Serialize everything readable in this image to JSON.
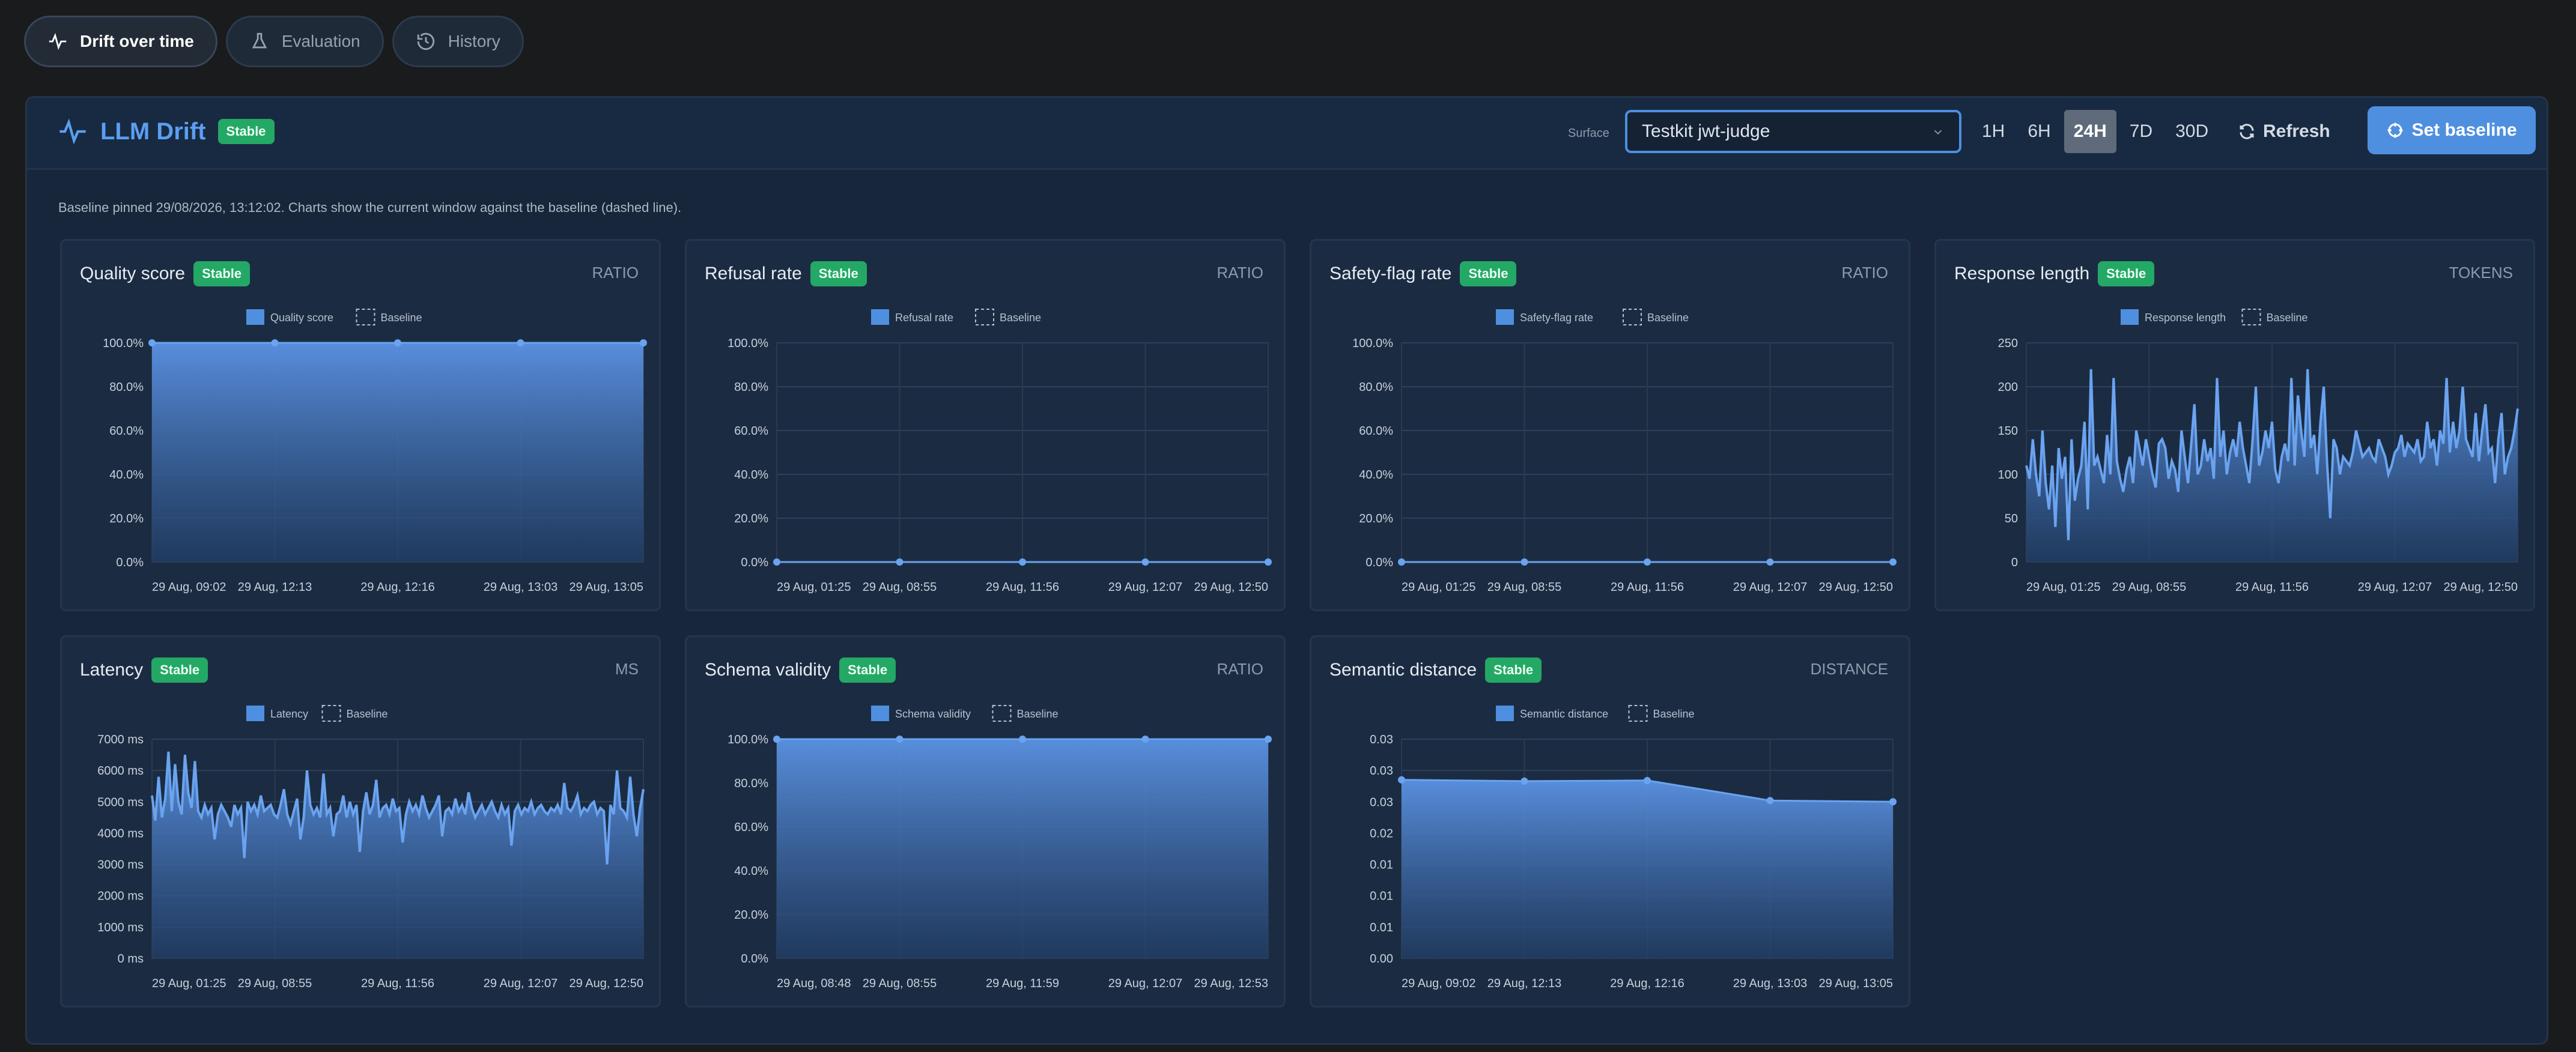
{
  "tabs": [
    {
      "label": "Drift over time",
      "icon": "pulse-icon",
      "active": true
    },
    {
      "label": "Evaluation",
      "icon": "flask-icon",
      "active": false
    },
    {
      "label": "History",
      "icon": "history-icon",
      "active": false
    }
  ],
  "header": {
    "title": "LLM Drift",
    "status": "Stable",
    "surface_label": "Surface",
    "surface_value": "Testkit jwt-judge",
    "ranges": [
      "1H",
      "6H",
      "24H",
      "7D",
      "30D"
    ],
    "active_range": "24H",
    "refresh_label": "Refresh",
    "set_baseline_label": "Set baseline"
  },
  "note": "Baseline pinned 29/08/2026, 13:12:02. Charts show the current window against the baseline (dashed line).",
  "colors": {
    "accent": "#4f8fe0",
    "stable": "#24a866",
    "background": "#1a1b1d",
    "card": "#1b2c42"
  },
  "cards": [
    {
      "title": "Quality score",
      "status": "Stable",
      "unit": "RATIO"
    },
    {
      "title": "Refusal rate",
      "status": "Stable",
      "unit": "RATIO"
    },
    {
      "title": "Safety-flag rate",
      "status": "Stable",
      "unit": "RATIO"
    },
    {
      "title": "Response length",
      "status": "Stable",
      "unit": "TOKENS"
    },
    {
      "title": "Latency",
      "status": "Stable",
      "unit": "MS"
    },
    {
      "title": "Schema validity",
      "status": "Stable",
      "unit": "RATIO"
    },
    {
      "title": "Semantic distance",
      "status": "Stable",
      "unit": "DISTANCE"
    }
  ],
  "chart_data": [
    {
      "type": "area",
      "legend": [
        "Quality score",
        "Baseline"
      ],
      "yticks": [
        "0.0%",
        "20.0%",
        "40.0%",
        "60.0%",
        "80.0%",
        "100.0%"
      ],
      "ylim": [
        0,
        1
      ],
      "xticks": [
        "29 Aug, 09:02",
        "29 Aug, 12:13",
        "29 Aug, 12:16",
        "29 Aug, 13:03",
        "29 Aug, 13:05"
      ],
      "values": [
        1,
        1,
        1,
        1,
        1
      ]
    },
    {
      "type": "area",
      "legend": [
        "Refusal rate",
        "Baseline"
      ],
      "yticks": [
        "0.0%",
        "20.0%",
        "40.0%",
        "60.0%",
        "80.0%",
        "100.0%"
      ],
      "ylim": [
        0,
        1
      ],
      "xticks": [
        "29 Aug, 01:25",
        "29 Aug, 08:55",
        "29 Aug, 11:56",
        "29 Aug, 12:07",
        "29 Aug, 12:50"
      ],
      "values": [
        0,
        0,
        0,
        0,
        0
      ]
    },
    {
      "type": "area",
      "legend": [
        "Safety-flag rate",
        "Baseline"
      ],
      "yticks": [
        "0.0%",
        "20.0%",
        "40.0%",
        "60.0%",
        "80.0%",
        "100.0%"
      ],
      "ylim": [
        0,
        1
      ],
      "xticks": [
        "29 Aug, 01:25",
        "29 Aug, 08:55",
        "29 Aug, 11:56",
        "29 Aug, 12:07",
        "29 Aug, 12:50"
      ],
      "values": [
        0,
        0,
        0,
        0,
        0
      ]
    },
    {
      "type": "area",
      "legend": [
        "Response length",
        "Baseline"
      ],
      "yticks": [
        "0",
        "50",
        "100",
        "150",
        "200",
        "250"
      ],
      "ylim": [
        0,
        250
      ],
      "xticks": [
        "29 Aug, 01:25",
        "29 Aug, 08:55",
        "29 Aug, 11:56",
        "29 Aug, 12:07",
        "29 Aug, 12:50"
      ],
      "values": [
        110,
        95,
        140,
        100,
        75,
        150,
        90,
        60,
        110,
        40,
        130,
        95,
        120,
        25,
        140,
        70,
        95,
        110,
        160,
        60,
        220,
        110,
        120,
        105,
        90,
        145,
        100,
        210,
        115,
        95,
        80,
        105,
        120,
        90,
        150,
        130,
        110,
        140,
        120,
        100,
        85,
        135,
        140,
        130,
        95,
        115,
        105,
        80,
        150,
        120,
        90,
        135,
        180,
        100,
        110,
        140,
        115,
        130,
        95,
        210,
        120,
        150,
        100,
        125,
        140,
        120,
        160,
        130,
        110,
        90,
        140,
        200,
        110,
        125,
        150,
        130,
        160,
        105,
        90,
        120,
        135,
        115,
        210,
        110,
        190,
        150,
        120,
        220,
        130,
        145,
        100,
        160,
        200,
        115,
        50,
        140,
        130,
        100,
        120,
        115,
        110,
        125,
        150,
        135,
        120,
        125,
        130,
        120,
        115,
        140,
        130,
        120,
        100,
        110,
        125,
        130,
        145,
        120,
        135,
        130,
        125,
        140,
        115,
        120,
        160,
        130,
        140,
        110,
        150,
        135,
        210,
        125,
        160,
        130,
        150,
        200,
        140,
        130,
        120,
        170,
        115,
        150,
        180,
        125,
        130,
        90,
        140,
        170,
        100,
        120,
        130,
        150,
        175
      ]
    },
    {
      "type": "area",
      "legend": [
        "Latency",
        "Baseline"
      ],
      "yticks": [
        "0 ms",
        "1000 ms",
        "2000 ms",
        "3000 ms",
        "4000 ms",
        "5000 ms",
        "6000 ms",
        "7000 ms"
      ],
      "ylim": [
        0,
        7000
      ],
      "xticks": [
        "29 Aug, 01:25",
        "29 Aug, 08:55",
        "29 Aug, 11:56",
        "29 Aug, 12:07",
        "29 Aug, 12:50"
      ],
      "values": [
        5200,
        4400,
        5800,
        4500,
        5100,
        6600,
        4700,
        6200,
        5000,
        4600,
        6500,
        5300,
        4800,
        6300,
        4700,
        4500,
        4900,
        4600,
        4800,
        3800,
        4600,
        4900,
        4700,
        4500,
        4200,
        4900,
        4600,
        4800,
        3200,
        5000,
        4700,
        4900,
        4600,
        5200,
        4700,
        4800,
        4900,
        4600,
        4500,
        4900,
        5400,
        4600,
        4300,
        4700,
        5100,
        3800,
        4500,
        6000,
        4900,
        4600,
        4800,
        4500,
        5900,
        4600,
        4800,
        3900,
        4600,
        4700,
        5200,
        4500,
        5000,
        4600,
        4900,
        3400,
        4700,
        5300,
        4600,
        4900,
        5700,
        4500,
        4800,
        4900,
        4600,
        5100,
        4700,
        4800,
        3700,
        4600,
        5000,
        4700,
        4900,
        4600,
        5200,
        4800,
        4500,
        4700,
        4900,
        5200,
        3900,
        4700,
        4800,
        4600,
        5100,
        4700,
        4900,
        4600,
        5300,
        4800,
        4500,
        4700,
        4900,
        4600,
        4800,
        5000,
        4700,
        4500,
        4900,
        4600,
        4800,
        3600,
        4700,
        4900,
        4600,
        4800,
        4700,
        5000,
        4600,
        4800,
        4900,
        4700,
        4600,
        4800,
        4700,
        4900,
        4600,
        5600,
        4800,
        4700,
        4900,
        5200,
        4600,
        4800,
        4700,
        4900,
        5000,
        4600,
        4800,
        4700,
        3000,
        4900,
        4600,
        6000,
        4800,
        4700,
        4500,
        5800,
        4600,
        3900,
        4800,
        5400
      ]
    },
    {
      "type": "area",
      "legend": [
        "Schema validity",
        "Baseline"
      ],
      "yticks": [
        "0.0%",
        "20.0%",
        "40.0%",
        "60.0%",
        "80.0%",
        "100.0%"
      ],
      "ylim": [
        0,
        1
      ],
      "xticks": [
        "29 Aug, 08:48",
        "29 Aug, 08:55",
        "29 Aug, 11:59",
        "29 Aug, 12:07",
        "29 Aug, 12:53"
      ],
      "values": [
        1,
        1,
        1,
        1,
        1
      ]
    },
    {
      "type": "area",
      "legend": [
        "Semantic distance",
        "Baseline"
      ],
      "yticks": [
        "0.00",
        "0.01",
        "0.01",
        "0.01",
        "0.02",
        "0.03",
        "0.03",
        "0.03"
      ],
      "ylim": [
        0,
        0.035
      ],
      "xticks": [
        "29 Aug, 09:02",
        "29 Aug, 12:13",
        "29 Aug, 12:16",
        "29 Aug, 13:03",
        "29 Aug, 13:05"
      ],
      "values": [
        0.0285,
        0.0283,
        0.0284,
        0.0252,
        0.025
      ]
    }
  ]
}
